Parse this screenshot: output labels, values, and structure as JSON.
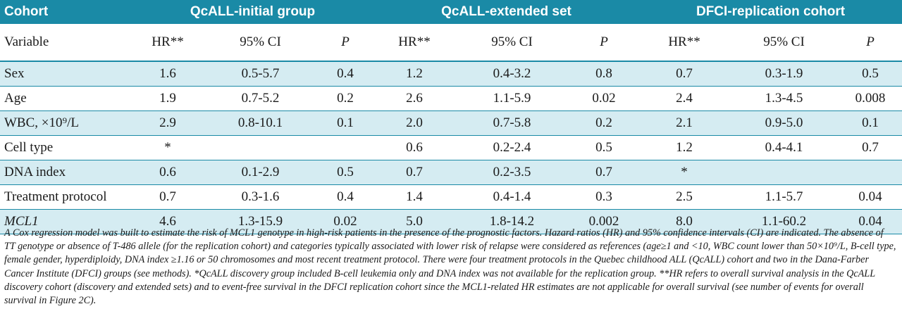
{
  "header": {
    "cohort_label": "Cohort",
    "groups": [
      "QcALL-initial group",
      "QcALL-extended set",
      "DFCI-replication cohort"
    ]
  },
  "subheader": {
    "variable_label": "Variable",
    "cols": [
      "HR**",
      "95% CI",
      "P",
      "HR**",
      "95% CI",
      "P",
      "HR**",
      "95% CI",
      "P"
    ]
  },
  "rows": [
    {
      "variable": "Sex",
      "values": [
        "1.6",
        "0.5-5.7",
        "0.4",
        "1.2",
        "0.4-3.2",
        "0.8",
        "0.7",
        "0.3-1.9",
        "0.5"
      ]
    },
    {
      "variable": "Age",
      "values": [
        "1.9",
        "0.7-5.2",
        "0.2",
        "2.6",
        "1.1-5.9",
        "0.02",
        "2.4",
        "1.3-4.5",
        "0.008"
      ]
    },
    {
      "variable": "WBC, ×10⁹/L",
      "values": [
        "2.9",
        "0.8-10.1",
        "0.1",
        "2.0",
        "0.7-5.8",
        "0.2",
        "2.1",
        "0.9-5.0",
        "0.1"
      ]
    },
    {
      "variable": "Cell type",
      "values": [
        "*",
        "",
        "",
        "0.6",
        "0.2-2.4",
        "0.5",
        "1.2",
        "0.4-4.1",
        "0.7"
      ]
    },
    {
      "variable": "DNA index",
      "values": [
        "0.6",
        "0.1-2.9",
        "0.5",
        "0.7",
        "0.2-3.5",
        "0.7",
        "*",
        "",
        ""
      ]
    },
    {
      "variable": "Treatment protocol",
      "values": [
        "0.7",
        "0.3-1.6",
        "0.4",
        "1.4",
        "0.4-1.4",
        "0.3",
        "2.5",
        "1.1-5.7",
        "0.04"
      ]
    },
    {
      "variable": "MCL1",
      "values": [
        "4.6",
        "1.3-15.9",
        "0.02",
        "5.0",
        "1.8-14.2",
        "0.002",
        "8.0",
        "1.1-60.2",
        "0.04"
      ]
    }
  ],
  "footnote": "A Cox regression model was built to estimate the risk of MCL1 genotype in high-risk patients in the presence of the prognostic factors. Hazard ratios (HR) and 95% confidence intervals (CI) are indicated. The absence of TT genotype or absence of T-486 allele (for the replication cohort) and categories typically associated with lower risk of relapse were considered as references (age≥1 and <10, WBC count lower than 50×10⁹/L, B-cell type, female gender, hyperdiploidy, DNA index ≥1.16 or 50 chromosomes and most recent treatment protocol. There were four treatment protocols in the Quebec childhood ALL (QcALL) cohort and two in the Dana-Farber Cancer Institute (DFCI) groups (see methods). *QcALL discovery group included B-cell leukemia only and DNA index was not available for the replication group. **HR refers to overall survival analysis in the QcALL discovery cohort (discovery and extended sets) and to event-free survival in the DFCI replication cohort since the MCL1-related HR estimates are not applicable for overall survival (see number of events for overall survival in Figure 2C).",
  "colors": {
    "header_bg": "#1a8aa6",
    "shade_bg": "#d5ecf2"
  }
}
